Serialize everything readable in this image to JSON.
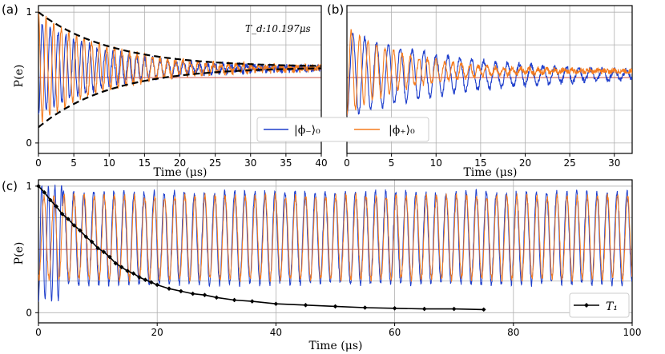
{
  "colors": {
    "phi_minus": "#1f3fcc",
    "phi_plus": "#f57c1f",
    "envelope": "#000000",
    "t1": "#000000",
    "grid": "#b0b0b0",
    "midline": "#c0392b"
  },
  "chart_data": [
    {
      "panel": "(a)",
      "type": "line",
      "xlabel": "Time (μs)",
      "ylabel": "P(e)",
      "xlim": [
        0,
        40
      ],
      "ylim": [
        -0.08,
        1.05
      ],
      "xticks": [
        "0",
        "5",
        "10",
        "15",
        "20",
        "25",
        "30",
        "35",
        "40"
      ],
      "yticks": [
        "0",
        "1"
      ],
      "annotation": "T_d:10.197μs",
      "Td_us": 10.197,
      "series": [
        {
          "name": "|φ−⟩0",
          "color_key": "phi_minus",
          "freq_per_us": 0.9,
          "amp0": 0.36,
          "center": 0.57,
          "phase": 3.14
        },
        {
          "name": "|φ+⟩0",
          "color_key": "phi_plus",
          "freq_per_us": 0.93,
          "amp0": 0.42,
          "center": 0.57,
          "phase": 0.0
        }
      ],
      "envelope": {
        "upper": [
          [
            0,
            1.0
          ],
          [
            10,
            0.73
          ],
          [
            20,
            0.63
          ],
          [
            30,
            0.6
          ],
          [
            40,
            0.58
          ]
        ],
        "lower": [
          [
            0,
            0.12
          ],
          [
            10,
            0.4
          ],
          [
            20,
            0.51
          ],
          [
            30,
            0.55
          ],
          [
            40,
            0.57
          ]
        ]
      }
    },
    {
      "panel": "(b)",
      "type": "line",
      "xlabel": "Time (μs)",
      "xlim": [
        0,
        32
      ],
      "ylim": [
        -0.08,
        1.05
      ],
      "xticks": [
        "0",
        "5",
        "10",
        "15",
        "20",
        "25",
        "30"
      ],
      "series": [
        {
          "name": "|φ−⟩0",
          "color_key": "phi_minus",
          "freq_per_us": 0.75,
          "amp0": 0.32,
          "center": 0.52,
          "Td": 14
        },
        {
          "name": "|φ+⟩0",
          "color_key": "phi_plus",
          "freq_per_us": 1.05,
          "amp0": 0.33,
          "center": 0.55,
          "Td": 7
        }
      ]
    },
    {
      "panel": "(c)",
      "type": "line",
      "xlabel": "Time (μs)",
      "ylabel": "P(e)",
      "xlim": [
        0,
        100
      ],
      "ylim": [
        -0.08,
        1.05
      ],
      "xticks": [
        "0",
        "20",
        "40",
        "60",
        "80",
        "100"
      ],
      "yticks": [
        "0",
        "1"
      ],
      "series": [
        {
          "name": "|φ−⟩0",
          "color_key": "phi_minus",
          "freq_per_us": 0.59,
          "low": 0.23,
          "high": 0.95
        },
        {
          "name": "|φ+⟩0",
          "color_key": "phi_plus",
          "freq_per_us": 0.59,
          "low": 0.27,
          "high": 0.92
        },
        {
          "name": "T1",
          "color_key": "t1",
          "x": [
            0,
            1,
            2,
            3,
            4,
            5,
            6,
            7,
            8,
            9,
            10,
            11,
            12,
            13,
            14,
            15,
            16,
            17,
            18,
            19,
            20,
            22,
            24,
            26,
            28,
            30,
            33,
            36,
            40,
            45,
            50,
            55,
            60,
            65,
            70,
            75
          ],
          "y": [
            1.0,
            0.95,
            0.89,
            0.84,
            0.78,
            0.74,
            0.69,
            0.65,
            0.6,
            0.56,
            0.51,
            0.48,
            0.44,
            0.39,
            0.36,
            0.33,
            0.31,
            0.28,
            0.26,
            0.24,
            0.22,
            0.19,
            0.17,
            0.15,
            0.14,
            0.12,
            0.1,
            0.09,
            0.07,
            0.06,
            0.05,
            0.04,
            0.035,
            0.03,
            0.03,
            0.025
          ]
        }
      ]
    }
  ],
  "legend_ab": {
    "phi_minus": "|ϕ₋⟩₀",
    "phi_plus": "|ϕ₊⟩₀"
  },
  "legend_c": {
    "t1": "T₁"
  },
  "labels": {
    "panel_a": "(a)",
    "panel_b": "(b)",
    "panel_c": "(c)",
    "ylabel": "P(e)",
    "xlabel_a": "Time (μs)",
    "xlabel_b": "Time (μs)",
    "xlabel_c": "Time (μs)",
    "annotation_a": "T_d:10.197μs"
  }
}
